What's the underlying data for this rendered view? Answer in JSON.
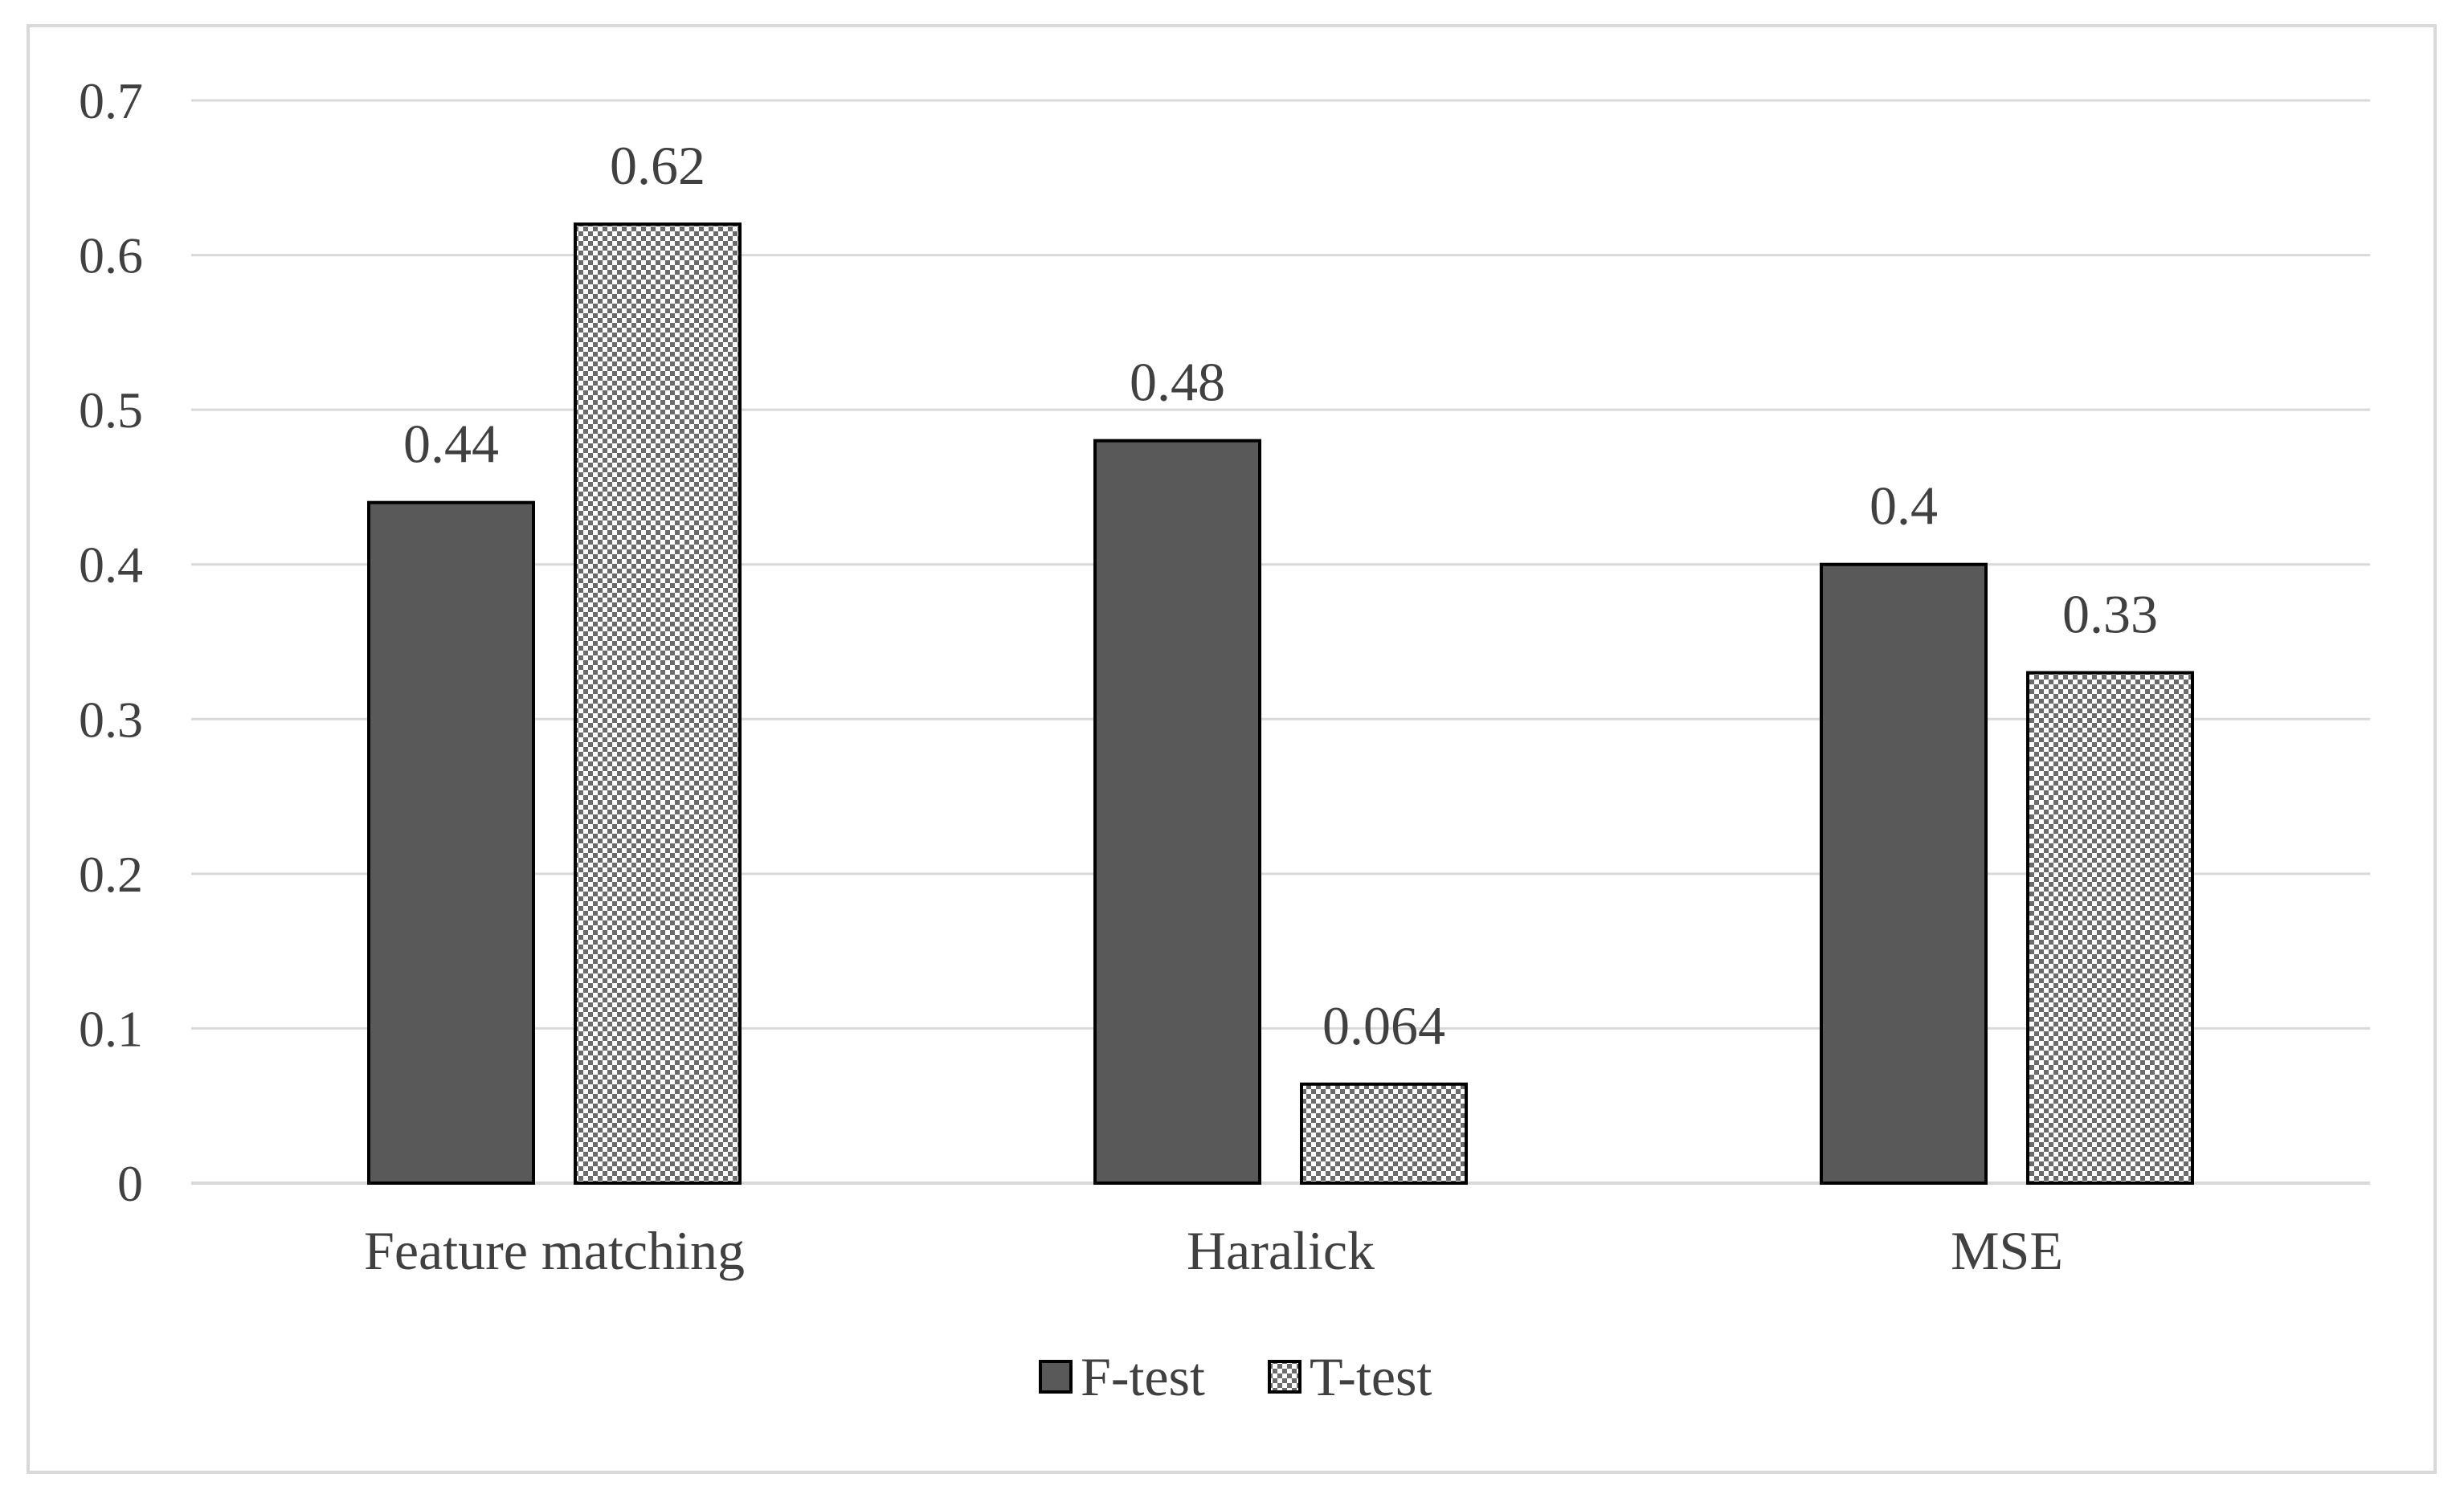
{
  "chart_data": {
    "type": "bar",
    "title": "",
    "xlabel": "",
    "ylabel": "",
    "categories": [
      "Feature matching",
      "Haralick",
      "MSE"
    ],
    "series": [
      {
        "name": "F-test",
        "values": [
          0.44,
          0.48,
          0.4
        ],
        "labels": [
          "0.44",
          "0.48",
          "0.4"
        ],
        "color": "#595959",
        "fill_style": "solid"
      },
      {
        "name": "T-test",
        "values": [
          0.62,
          0.064,
          0.33
        ],
        "labels": [
          "0.62",
          "0.064",
          "0.33"
        ],
        "color": "#ffffff",
        "fill_style": "checker-pattern"
      }
    ],
    "ylim": [
      0,
      0.7
    ],
    "yticks": [
      0,
      0.1,
      0.2,
      0.3,
      0.4,
      0.5,
      0.6,
      0.7
    ],
    "ytick_labels": [
      "0",
      "0.1",
      "0.2",
      "0.3",
      "0.4",
      "0.5",
      "0.6",
      "0.7"
    ],
    "grid": true,
    "legend_position": "bottom-center",
    "colors": {
      "gridline": "#d9d9d9",
      "bar_outline": "#000000",
      "text": "#404040",
      "frame": "#d9d9d9"
    }
  }
}
